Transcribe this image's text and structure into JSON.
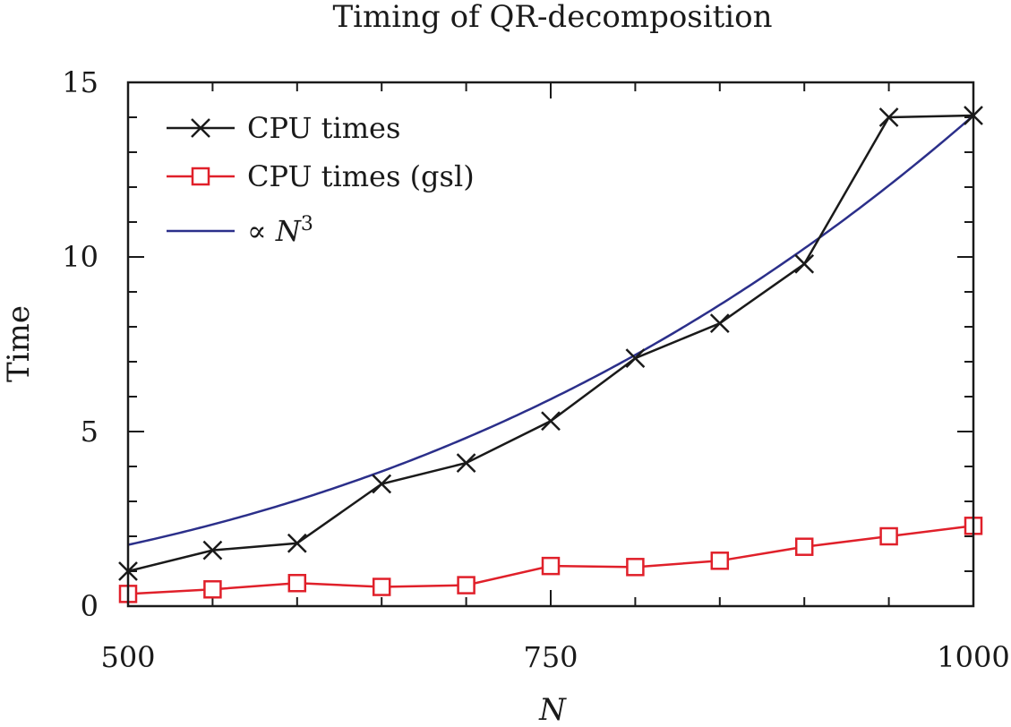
{
  "chart_data": {
    "type": "line",
    "title": "Timing of QR-decomposition",
    "xlabel": "N",
    "ylabel": "Time",
    "xlim": [
      500,
      1000
    ],
    "ylim": [
      0,
      15
    ],
    "x_ticks": [
      500,
      750,
      1000
    ],
    "y_ticks": [
      0,
      5,
      10,
      15
    ],
    "x_tick_labels": [
      "500",
      "750",
      "1000"
    ],
    "y_tick_labels": [
      "0",
      "5",
      "10",
      "15"
    ],
    "grid": false,
    "legend_position": "top-left",
    "series": [
      {
        "name": "CPU times",
        "marker": "x",
        "color": "#1a1a1a",
        "x": [
          500,
          550,
          600,
          650,
          700,
          750,
          800,
          850,
          900,
          950,
          1000
        ],
        "y": [
          1.0,
          1.6,
          1.8,
          3.5,
          4.1,
          5.3,
          7.1,
          8.1,
          9.8,
          14.0,
          14.05
        ]
      },
      {
        "name": "CPU times (gsl)",
        "marker": "square",
        "color": "#e0202a",
        "x": [
          500,
          550,
          600,
          650,
          700,
          750,
          800,
          850,
          900,
          950,
          1000
        ],
        "y": [
          0.35,
          0.48,
          0.66,
          0.55,
          0.6,
          1.15,
          1.12,
          1.3,
          1.7,
          2.0,
          2.3
        ]
      },
      {
        "name": "∝ N",
        "name_superscript": "3",
        "marker": "none",
        "color": "#2b2f8a",
        "function": "cubic",
        "coefficient": 1.405e-08
      }
    ]
  }
}
